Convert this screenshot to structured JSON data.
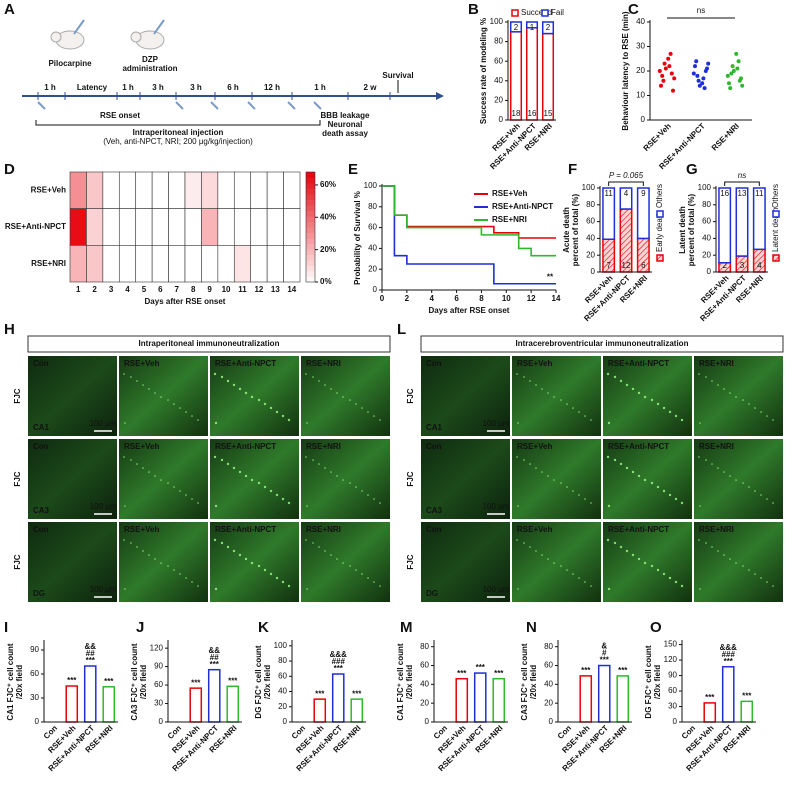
{
  "figure_a": {
    "label": "A",
    "drug1": "Pilocarpine",
    "drug2": [
      "DZP",
      "administration"
    ],
    "intervals": [
      "1 h",
      "Latency",
      "1 h",
      "3 h",
      "3 h",
      "6 h",
      "12 h",
      "1 h",
      "2 w"
    ],
    "endpoint": "Survival",
    "onset": "RSE onset",
    "assays": [
      "BBB leakage",
      "Neuronal",
      "death assay"
    ],
    "injection": [
      "Intraperitoneal injection",
      "(Veh, anti-NPCT, NRI; 200 μg/kg/injection)"
    ]
  },
  "chart_data": [
    {
      "type": "stacked_bar",
      "label": "B",
      "ylabel": [
        "Success rate of modeling %"
      ],
      "categories": [
        "RSE+Veh",
        "RSE+Anti-NPCT",
        "RSE+NRI"
      ],
      "series": [
        {
          "name": "Succeed",
          "color": "#e8000b",
          "values": [
            90,
            94.1,
            88.2
          ],
          "n": [
            18,
            16,
            15
          ]
        },
        {
          "name": "Fail",
          "color": "#1f2fd6",
          "values": [
            10,
            5.9,
            11.8
          ],
          "n": [
            2,
            1,
            2
          ]
        }
      ],
      "ylim": [
        0,
        100
      ],
      "yticks": [
        0,
        20,
        40,
        60,
        80,
        100
      ],
      "legend": "top"
    },
    {
      "type": "strip",
      "label": "C",
      "ylabel": [
        "Behaviour latency to RSE (min)"
      ],
      "categories": [
        "RSE+Veh",
        "RSE+Anti-NPCT",
        "RSE+NRI"
      ],
      "colors": [
        "#e8000b",
        "#1f2fd6",
        "#2db82d"
      ],
      "groups": [
        [
          20,
          25,
          14,
          22,
          18,
          27,
          16,
          19,
          23,
          12,
          21,
          17
        ],
        [
          19,
          15,
          22,
          17,
          24,
          13,
          18,
          20,
          16,
          21,
          14,
          23
        ],
        [
          18,
          27,
          15,
          21,
          13,
          24,
          19,
          16,
          22,
          17,
          20,
          14
        ]
      ],
      "ylim": [
        0,
        40
      ],
      "yticks": [
        0,
        10,
        20,
        30,
        40
      ],
      "annotation": "ns"
    },
    {
      "type": "heatmap",
      "label": "D",
      "xlabel": "Days after RSE onset",
      "rows": [
        "RSE+Veh",
        "RSE+Anti-NPCT",
        "RSE+NRI"
      ],
      "x": [
        1,
        2,
        3,
        4,
        5,
        6,
        7,
        8,
        9,
        10,
        11,
        12,
        13,
        14
      ],
      "values": [
        [
          30,
          15,
          0,
          0,
          0,
          0,
          0,
          5,
          10,
          0,
          0,
          0,
          0,
          0
        ],
        [
          65,
          12,
          0,
          0,
          0,
          0,
          0,
          0,
          20,
          0,
          0,
          0,
          0,
          0
        ],
        [
          20,
          15,
          0,
          0,
          0,
          0,
          0,
          0,
          0,
          0,
          7,
          0,
          0,
          0
        ]
      ],
      "clim": [
        0,
        68
      ],
      "color": "#e8000b",
      "cticks": [
        {
          "value": 0,
          "label": "0%"
        },
        {
          "value": 20,
          "label": "20%"
        },
        {
          "value": 40,
          "label": "40%"
        },
        {
          "value": 60,
          "label": "60%"
        }
      ]
    },
    {
      "type": "line",
      "label": "E",
      "ylabel": [
        "Probability of Survival %"
      ],
      "xlabel": "Days after RSE onset",
      "series": [
        {
          "name": "RSE+Veh",
          "color": "#e8000b",
          "x": [
            0,
            1,
            1,
            2,
            2,
            9,
            9,
            11,
            11,
            14
          ],
          "values": [
            100,
            100,
            72,
            72,
            61,
            61,
            55,
            55,
            50,
            50
          ]
        },
        {
          "name": "RSE+Anti-NPCT",
          "color": "#1f2fd6",
          "x": [
            0,
            1,
            1,
            2,
            2,
            9,
            9,
            14
          ],
          "values": [
            100,
            100,
            33,
            33,
            25,
            25,
            6,
            6
          ]
        },
        {
          "name": "RSE+NRI",
          "color": "#2db82d",
          "x": [
            0,
            1,
            1,
            2,
            2,
            8,
            8,
            11,
            11,
            12,
            12,
            14
          ],
          "values": [
            100,
            100,
            72,
            72,
            60,
            60,
            53,
            53,
            40,
            40,
            33,
            33
          ]
        }
      ],
      "xlim": [
        0,
        14
      ],
      "xticks": [
        0,
        2,
        4,
        6,
        8,
        10,
        12,
        14
      ],
      "ylim": [
        0,
        100
      ],
      "yticks": [
        0,
        20,
        40,
        60,
        80,
        100
      ],
      "legend": "upper right",
      "annotation": "**"
    },
    {
      "type": "stacked_bar",
      "label": "F",
      "ylabel": [
        "Acute death",
        "percent of total (%)"
      ],
      "categories": [
        "RSE+Veh",
        "RSE+Anti-NPCT",
        "RSE+NRI"
      ],
      "series": [
        {
          "name": "Early death",
          "color": "#e8000b",
          "hatch": true,
          "values": [
            39,
            75,
            40
          ],
          "n": [
            7,
            12,
            6
          ]
        },
        {
          "name": "Others",
          "color": "#1f2fd6",
          "values": [
            61,
            25,
            60
          ],
          "n": [
            11,
            4,
            9
          ]
        }
      ],
      "ylim": [
        0,
        100
      ],
      "yticks": [
        0,
        20,
        40,
        60,
        80,
        100
      ],
      "legend": "right",
      "annotation": "P = 0.065"
    },
    {
      "type": "stacked_bar",
      "label": "G",
      "ylabel": [
        "Latent death",
        "percent of total (%)"
      ],
      "categories": [
        "RSE+Veh",
        "RSE+Anti-NPCT",
        "RSE+NRI"
      ],
      "series": [
        {
          "name": "Latent death",
          "color": "#e8000b",
          "hatch": true,
          "values": [
            11,
            19,
            27
          ],
          "n": [
            2,
            3,
            4
          ]
        },
        {
          "name": "Others",
          "color": "#1f2fd6",
          "values": [
            89,
            81,
            73
          ],
          "n": [
            16,
            13,
            11
          ]
        }
      ],
      "ylim": [
        0,
        100
      ],
      "yticks": [
        0,
        20,
        40,
        60,
        80,
        100
      ],
      "legend": "right",
      "annotation": "ns"
    },
    {
      "type": "bar",
      "label": "I",
      "ylabel": [
        "CA1 FJC⁺ cell count",
        "/20x field"
      ],
      "categories": [
        "Con",
        "RSE+Veh",
        "RSE+Anti-NPCT",
        "RSE+NRI"
      ],
      "colors": [
        "#888888",
        "#e8000b",
        "#1f2fd6",
        "#2db82d"
      ],
      "values": [
        0,
        45,
        70,
        44
      ],
      "annotations": [
        null,
        [
          "***"
        ],
        [
          "&&",
          "##",
          "***"
        ],
        [
          "***"
        ]
      ],
      "ylim": [
        0,
        100
      ],
      "yticks": [
        0,
        30,
        60,
        90
      ]
    },
    {
      "type": "bar",
      "label": "J",
      "ylabel": [
        "CA3 FJC⁺ cell count",
        "/20x field"
      ],
      "categories": [
        "Con",
        "RSE+Veh",
        "RSE+Anti-NPCT",
        "RSE+NRI"
      ],
      "colors": [
        "#888888",
        "#e8000b",
        "#1f2fd6",
        "#2db82d"
      ],
      "values": [
        0,
        55,
        85,
        58
      ],
      "annotations": [
        null,
        [
          "***"
        ],
        [
          "&&",
          "##",
          "***"
        ],
        [
          "***"
        ]
      ],
      "ylim": [
        0,
        130
      ],
      "yticks": [
        0,
        30,
        60,
        90,
        120
      ]
    },
    {
      "type": "bar",
      "label": "K",
      "ylabel": [
        "DG FJC⁺ cell count",
        "/20x field"
      ],
      "categories": [
        "Con",
        "RSE+Veh",
        "RSE+Anti-NPCT",
        "RSE+NRI"
      ],
      "colors": [
        "#888888",
        "#e8000b",
        "#1f2fd6",
        "#2db82d"
      ],
      "values": [
        0,
        30,
        63,
        30
      ],
      "annotations": [
        null,
        [
          "***"
        ],
        [
          "&&&",
          "###",
          "***"
        ],
        [
          "***"
        ]
      ],
      "ylim": [
        0,
        105
      ],
      "yticks": [
        0,
        20,
        40,
        60,
        80,
        100
      ]
    },
    {
      "type": "bar",
      "label": "M",
      "ylabel": [
        "CA1 FJC⁺ cell count",
        "/20x field"
      ],
      "categories": [
        "Con",
        "RSE+Veh",
        "RSE+Anti-NPCT",
        "RSE+NRI"
      ],
      "colors": [
        "#888888",
        "#e8000b",
        "#1f2fd6",
        "#2db82d"
      ],
      "values": [
        0,
        46,
        52,
        46
      ],
      "annotations": [
        null,
        [
          "***"
        ],
        [
          "***"
        ],
        [
          "***"
        ]
      ],
      "ylim": [
        0,
        85
      ],
      "yticks": [
        0,
        20,
        40,
        60,
        80
      ]
    },
    {
      "type": "bar",
      "label": "N",
      "ylabel": [
        "CA3 FJC⁺ cell count",
        "/20x field"
      ],
      "categories": [
        "Con",
        "RSE+Veh",
        "RSE+Anti-NPCT",
        "RSE+NRI"
      ],
      "colors": [
        "#888888",
        "#e8000b",
        "#1f2fd6",
        "#2db82d"
      ],
      "values": [
        0,
        49,
        60,
        49
      ],
      "annotations": [
        null,
        [
          "***"
        ],
        [
          "&",
          "#",
          "***"
        ],
        [
          "***"
        ]
      ],
      "ylim": [
        0,
        85
      ],
      "yticks": [
        0,
        20,
        40,
        60,
        80
      ]
    },
    {
      "type": "bar",
      "label": "O",
      "ylabel": [
        "DG FJC⁺ cell count",
        "/20x field"
      ],
      "categories": [
        "Con",
        "RSE+Veh",
        "RSE+Anti-NPCT",
        "RSE+NRI"
      ],
      "colors": [
        "#888888",
        "#e8000b",
        "#1f2fd6",
        "#2db82d"
      ],
      "values": [
        0,
        37,
        107,
        40
      ],
      "annotations": [
        null,
        [
          "***"
        ],
        [
          "&&&",
          "###",
          "***"
        ],
        [
          "***"
        ]
      ],
      "ylim": [
        0,
        155
      ],
      "yticks": [
        0,
        30,
        60,
        90,
        120,
        150
      ]
    }
  ],
  "images": [
    {
      "label": "H",
      "title": "Intraperitoneal immunoneutralization",
      "stain": "FJC",
      "scale": "100 μm",
      "columns": [
        "Con",
        "RSE+Veh",
        "RSE+Anti-NPCT",
        "RSE+NRI"
      ],
      "regions": [
        "CA1",
        "CA3",
        "DG"
      ]
    },
    {
      "label": "L",
      "title": "Intracerebroventricular immunoneutralization",
      "stain": "FJC",
      "scale": "100 μm",
      "columns": [
        "Con",
        "RSE+Veh",
        "RSE+Anti-NPCT",
        "RSE+NRI"
      ],
      "regions": [
        "CA1",
        "CA3",
        "DG"
      ]
    }
  ]
}
